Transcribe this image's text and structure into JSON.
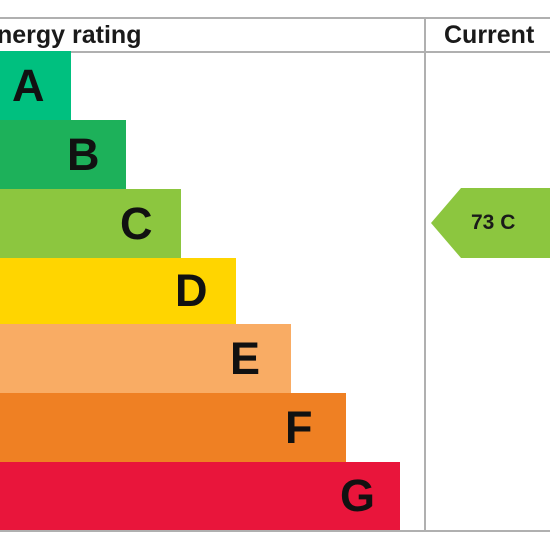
{
  "header": {
    "rating_label": "nergy rating",
    "current_label": "Current"
  },
  "current": {
    "value": 73,
    "band": "C",
    "label": "73  C",
    "color": "#8cc63f"
  },
  "chart_data": {
    "type": "bar",
    "categories": [
      "A",
      "B",
      "C",
      "D",
      "E",
      "F",
      "G"
    ],
    "colors": [
      "#00c07f",
      "#1db15a",
      "#8cc63f",
      "#ffd500",
      "#f9ac64",
      "#ef8023",
      "#e9153b"
    ],
    "current": {
      "value": 73,
      "band": "C"
    }
  }
}
